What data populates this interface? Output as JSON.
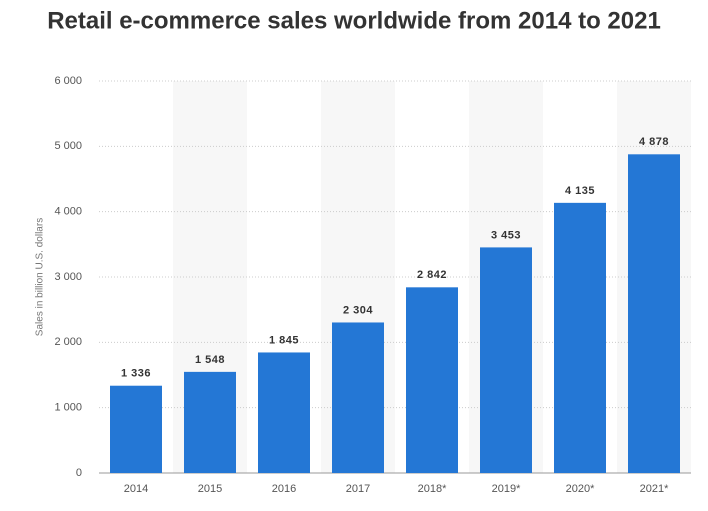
{
  "chart_data": {
    "type": "bar",
    "title": "Retail e-commerce sales worldwide from 2014 to 2021",
    "y_label": "Sales in billion U.S. dollars",
    "categories": [
      "2014",
      "2015",
      "2016",
      "2017",
      "2018*",
      "2019*",
      "2020*",
      "2021*"
    ],
    "values": [
      1336,
      1548,
      1845,
      2304,
      2842,
      3453,
      4135,
      4878
    ],
    "value_labels": [
      "1 336",
      "1 548",
      "1 845",
      "2 304",
      "2 842",
      "3 453",
      "4 135",
      "4 878"
    ],
    "color": "#2477d5",
    "ylim": [
      0,
      6000
    ],
    "yticks": [
      {
        "value": 0,
        "label": "0"
      },
      {
        "value": 1000,
        "label": "1 000"
      },
      {
        "value": 2000,
        "label": "2 000"
      },
      {
        "value": 3000,
        "label": "3 000"
      },
      {
        "value": 4000,
        "label": "4 000"
      },
      {
        "value": 5000,
        "label": "5 000"
      },
      {
        "value": 6000,
        "label": "6 000"
      }
    ],
    "grid": true
  }
}
